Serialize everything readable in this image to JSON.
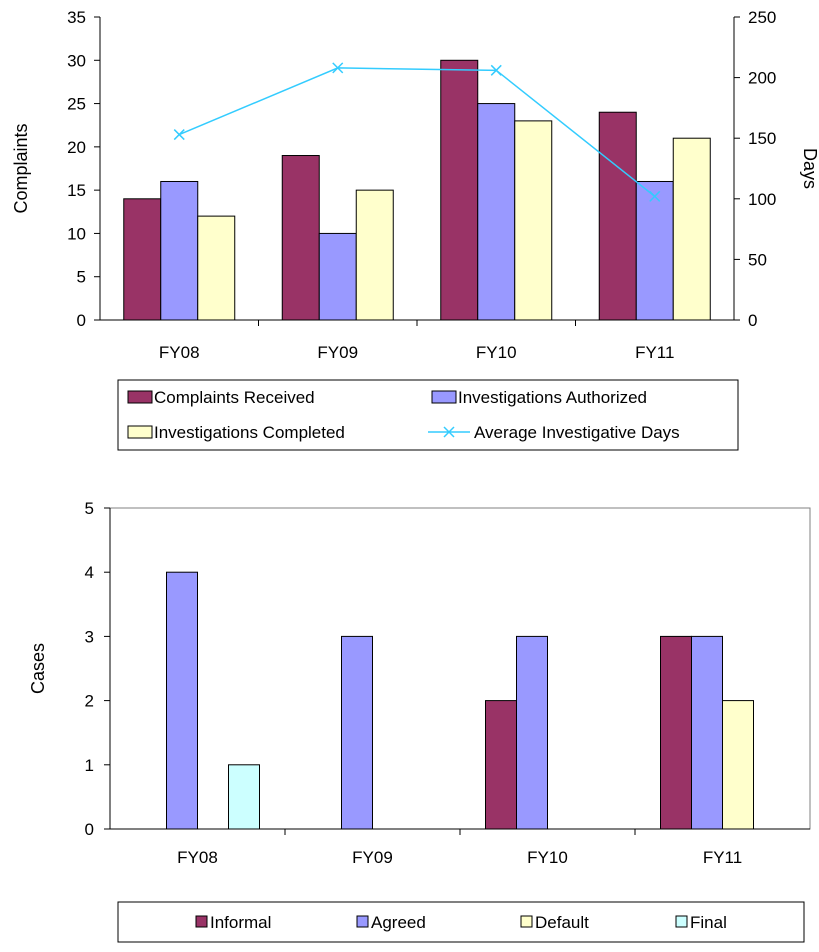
{
  "colors": {
    "received": "#993366",
    "authorized": "#9999ff",
    "completed": "#ffffcc",
    "avg_days": "#33ccff",
    "informal": "#993366",
    "agreed": "#9999ff",
    "default": "#ffffcc",
    "final": "#ccffff"
  },
  "chart_data": [
    {
      "type": "bar",
      "categories": [
        "FY08",
        "FY09",
        "FY10",
        "FY11"
      ],
      "ylabel": "Complaints",
      "ylabel_right": "Days",
      "ylim": [
        0,
        35
      ],
      "yticks": [
        "0",
        "5",
        "10",
        "15",
        "20",
        "25",
        "30",
        "35"
      ],
      "ylim_right": [
        0,
        250
      ],
      "yticks_right": [
        "0",
        "50",
        "100",
        "150",
        "200",
        "250"
      ],
      "grid": false,
      "legend_position": "bottom",
      "series": [
        {
          "name": "Complaints Received",
          "values": [
            14,
            19,
            30,
            24
          ]
        },
        {
          "name": "Investigations Authorized",
          "values": [
            16,
            10,
            25,
            16
          ]
        },
        {
          "name": "Investigations Completed",
          "values": [
            12,
            15,
            23,
            21
          ]
        },
        {
          "name": "Average Investigative Days",
          "type": "line",
          "axis": "right",
          "values": [
            153,
            208,
            206,
            102
          ]
        }
      ]
    },
    {
      "type": "bar",
      "categories": [
        "FY08",
        "FY09",
        "FY10",
        "FY11"
      ],
      "ylabel": "Cases",
      "ylim": [
        0,
        5
      ],
      "yticks": [
        "0",
        "1",
        "2",
        "3",
        "4",
        "5"
      ],
      "grid": false,
      "legend_position": "bottom",
      "series": [
        {
          "name": "Informal",
          "values": [
            0,
            0,
            2,
            3
          ]
        },
        {
          "name": "Agreed",
          "values": [
            4,
            3,
            3,
            3
          ]
        },
        {
          "name": "Default",
          "values": [
            0,
            0,
            0,
            2
          ]
        },
        {
          "name": "Final",
          "values": [
            1,
            0,
            0,
            0
          ]
        }
      ]
    }
  ]
}
